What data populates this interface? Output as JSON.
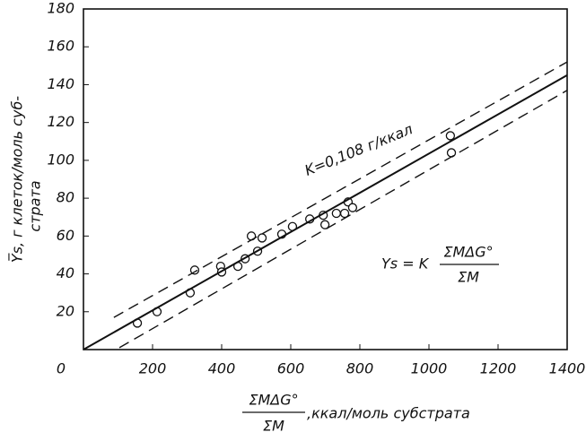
{
  "chart_data": {
    "type": "scatter",
    "y_label_lines": [
      "Y̅s, г клеток/моль суб-",
      "страта"
    ],
    "x_label": {
      "numerator": "ΣMΔG°",
      "denominator": "ΣM",
      "unit": ",ккал/моль субстрата"
    },
    "annotation": "K=0,108 г/ккал",
    "formula": {
      "left": "Ys = K",
      "numerator": "ΣMΔG°",
      "denominator": "ΣM"
    },
    "origin_label": "0",
    "xlim": [
      0,
      1400
    ],
    "ylim": [
      0,
      180
    ],
    "xticks": [
      200,
      400,
      600,
      800,
      1000,
      1200,
      1400
    ],
    "yticks": [
      20,
      40,
      60,
      80,
      100,
      120,
      140,
      160,
      180
    ],
    "grid": false,
    "series": [
      {
        "style": "circle",
        "color": "#111111",
        "x": [
          156,
          213,
          309,
          322,
          397,
          400,
          447,
          468,
          486,
          504,
          517,
          574,
          605,
          655,
          694,
          699,
          732,
          756,
          766,
          779,
          1062,
          1065
        ],
        "values": [
          14,
          20,
          30,
          42,
          44,
          41,
          44,
          48,
          60,
          52,
          59,
          61,
          65,
          69,
          71,
          66,
          72,
          72,
          78,
          75,
          113,
          104
        ]
      },
      {
        "style": "solid",
        "color": "#111111",
        "x": [
          0,
          1400
        ],
        "values": [
          0,
          145
        ]
      },
      {
        "style": "dashed",
        "color": "#111111",
        "x": [
          88,
          1400
        ],
        "values": [
          17,
          152
        ]
      },
      {
        "style": "dashed",
        "color": "#111111",
        "x": [
          104,
          1400
        ],
        "values": [
          1,
          137
        ]
      }
    ]
  }
}
